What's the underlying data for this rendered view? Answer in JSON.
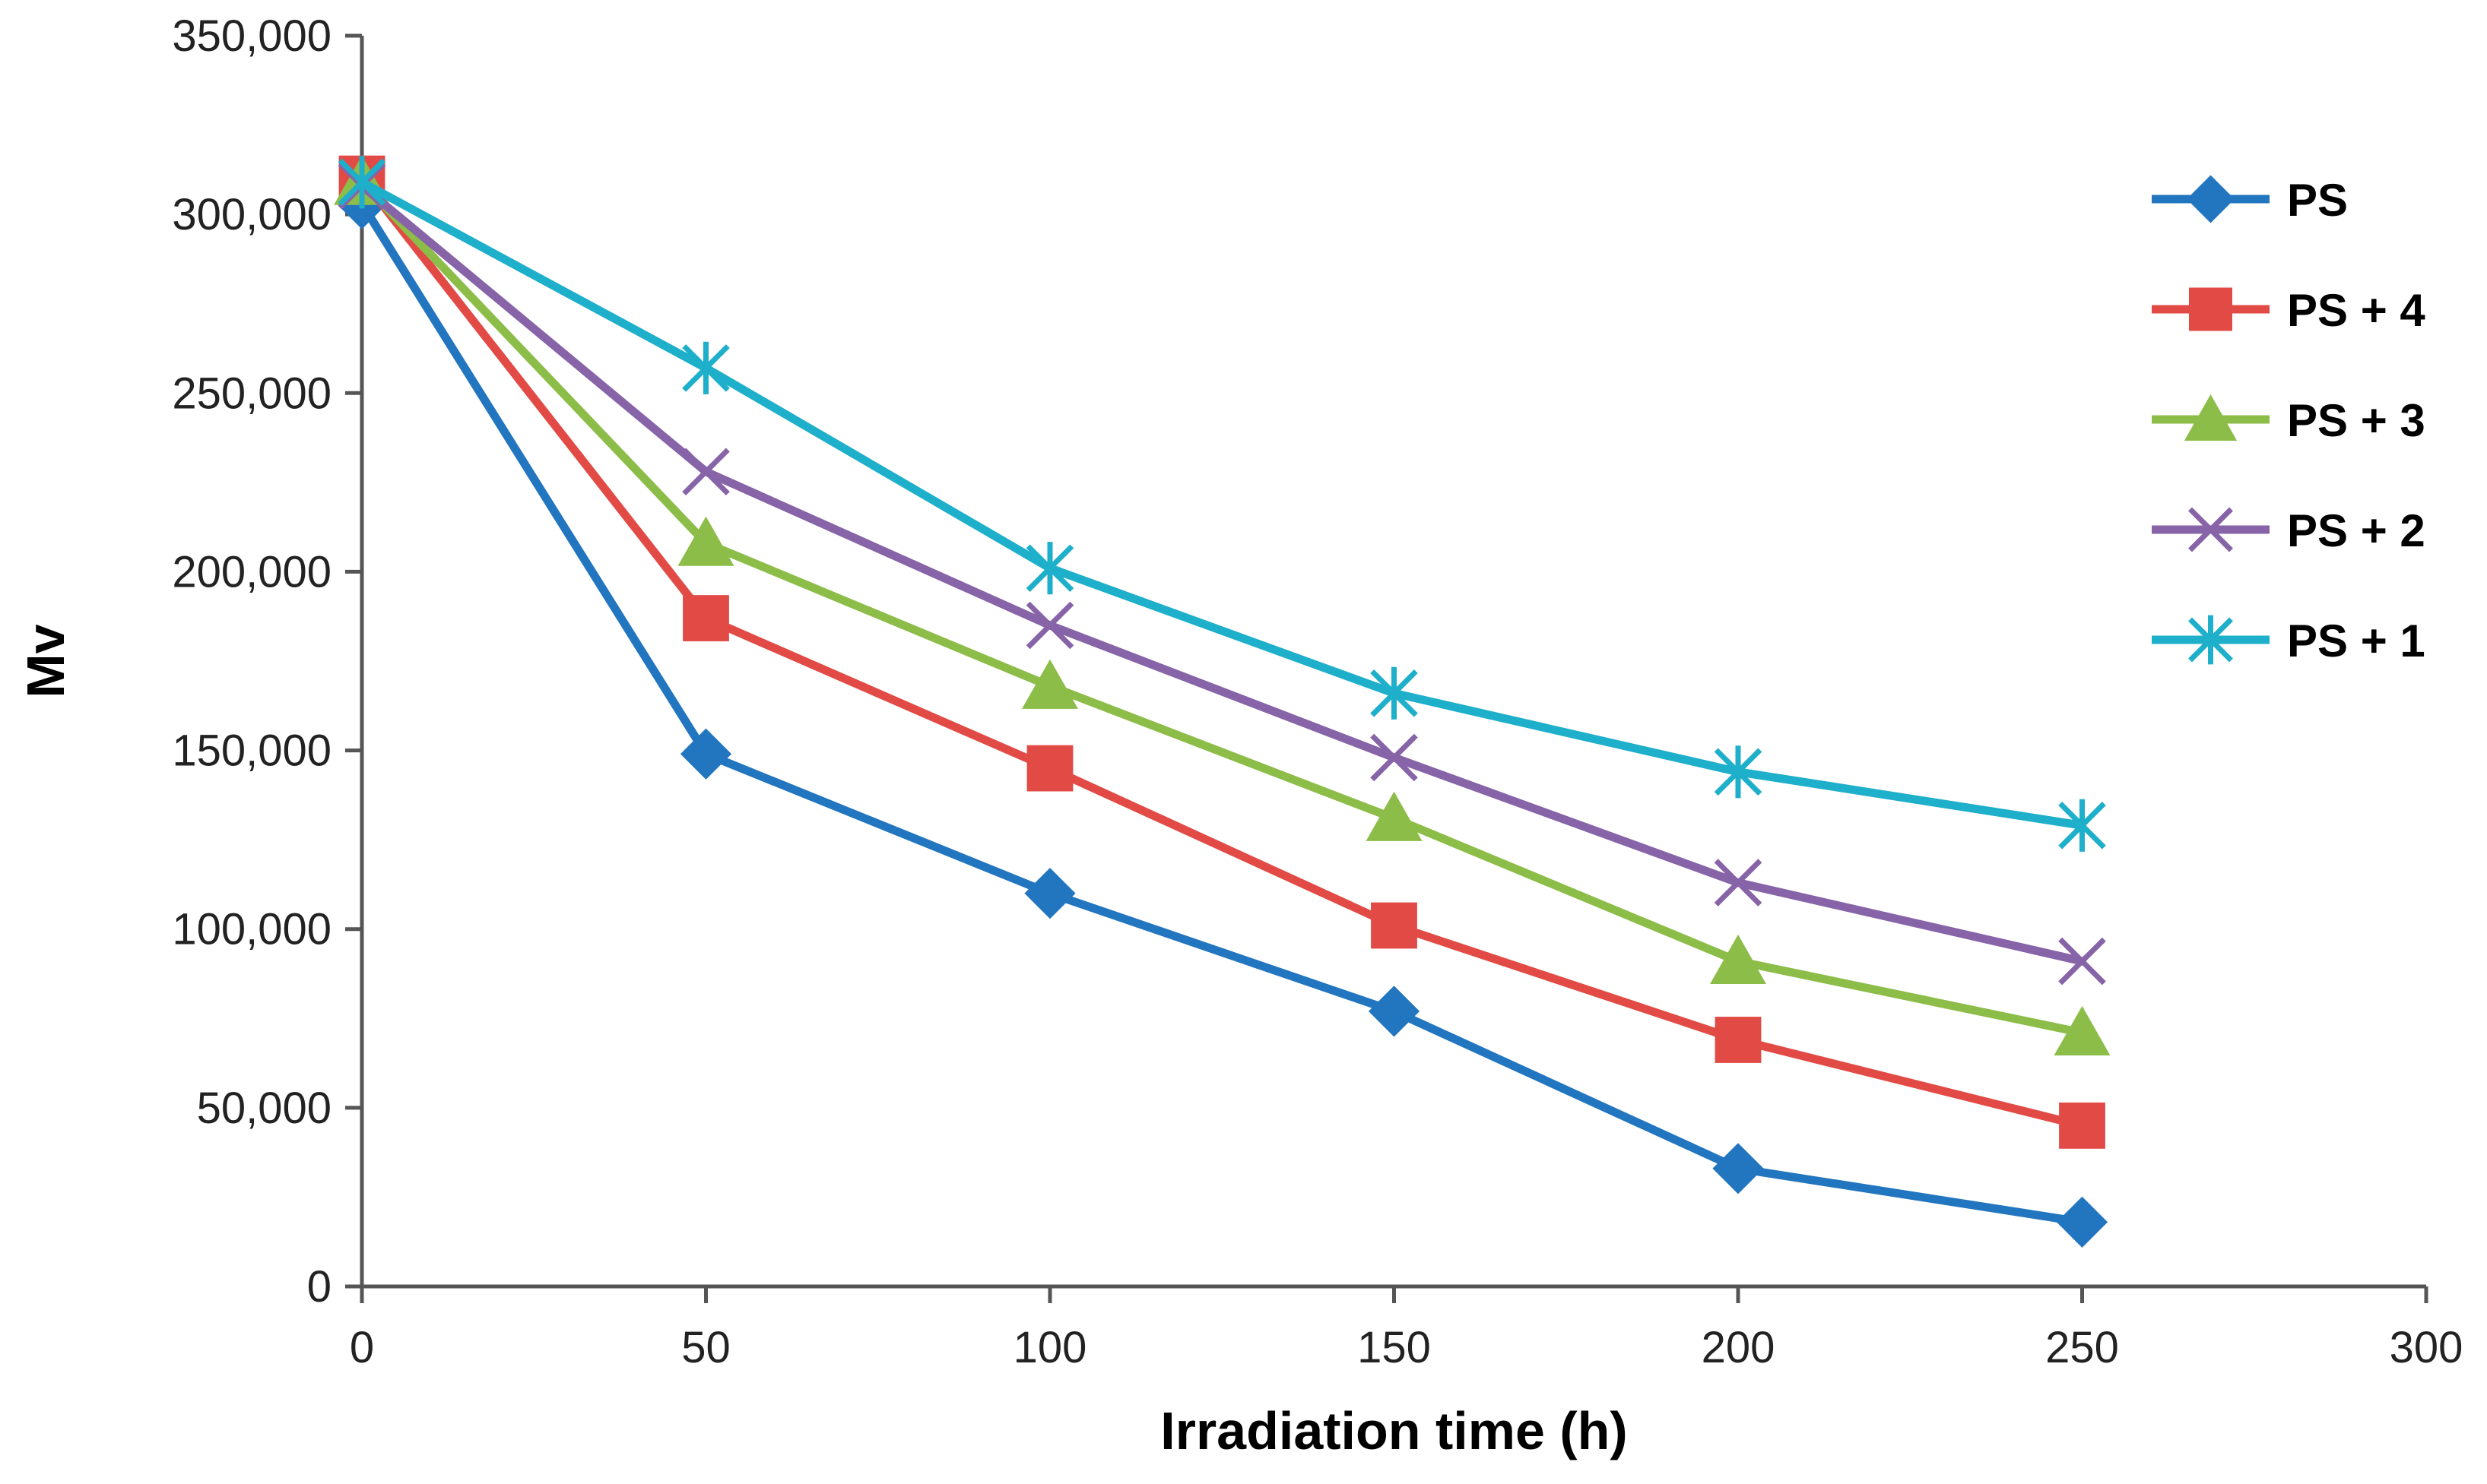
{
  "chart_data": {
    "type": "line",
    "title": "",
    "xlabel": "Irradiation time (h)",
    "ylabel": "Mv",
    "xlim": [
      0,
      300
    ],
    "ylim": [
      0,
      350000
    ],
    "x_ticks": [
      0,
      50,
      100,
      150,
      200,
      250,
      300
    ],
    "x_tick_labels": [
      "0",
      "50",
      "100",
      "150",
      "200",
      "250",
      "300"
    ],
    "y_ticks": [
      0,
      50000,
      100000,
      150000,
      200000,
      250000,
      300000,
      350000
    ],
    "y_tick_labels": [
      "0",
      "50,000",
      "100,000",
      "150,000",
      "200,000",
      "250,000",
      "300,000",
      "350,000"
    ],
    "grid": false,
    "legend_position": "right",
    "x": [
      0,
      50,
      100,
      150,
      200,
      250
    ],
    "series": [
      {
        "name": "PS",
        "color": "#2275BF",
        "marker": "diamond",
        "values": [
          303000,
          149000,
          110000,
          77000,
          33000,
          18000
        ]
      },
      {
        "name": "PS + 4",
        "color": "#E24B45",
        "marker": "square",
        "values": [
          310000,
          187000,
          145000,
          101000,
          69000,
          45000
        ]
      },
      {
        "name": "PS + 3",
        "color": "#8CBD48",
        "marker": "triangle",
        "values": [
          309000,
          208000,
          168000,
          131000,
          91000,
          71000
        ]
      },
      {
        "name": "PS + 2",
        "color": "#8763A8",
        "marker": "x",
        "values": [
          308000,
          228000,
          185000,
          148000,
          113000,
          91000
        ]
      },
      {
        "name": "PS + 1",
        "color": "#1EAFCB",
        "marker": "star",
        "values": [
          309000,
          257000,
          201000,
          166000,
          144000,
          129000
        ]
      }
    ]
  }
}
